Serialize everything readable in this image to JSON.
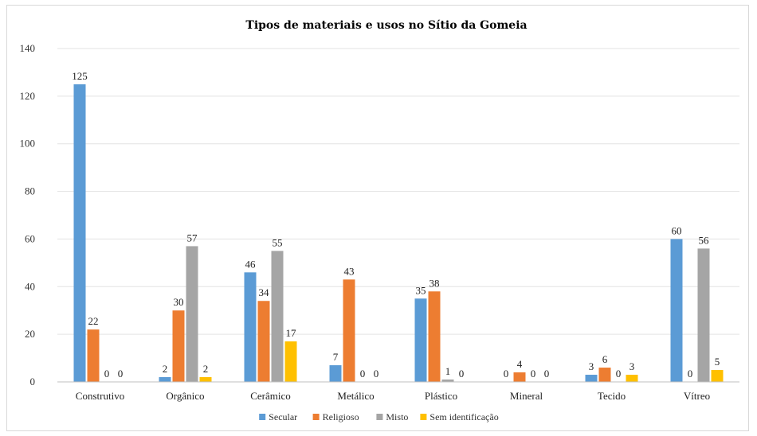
{
  "chart_data": {
    "type": "bar",
    "title": "Tipos de materiais e usos no Sítio da Gomeia",
    "categories": [
      "Construtivo",
      "Orgânico",
      "Cerâmico",
      "Metálico",
      "Plástico",
      "Mineral",
      "Tecido",
      "Vítreo"
    ],
    "series": [
      {
        "name": "Secular",
        "color": "#5b9bd5",
        "values": [
          125,
          2,
          46,
          7,
          35,
          0,
          3,
          60
        ]
      },
      {
        "name": "Religioso",
        "color": "#ed7d31",
        "values": [
          22,
          30,
          34,
          43,
          38,
          4,
          6,
          0
        ]
      },
      {
        "name": "Misto",
        "color": "#a5a5a5",
        "values": [
          0,
          57,
          55,
          0,
          1,
          0,
          0,
          56
        ]
      },
      {
        "name": "Sem identificação",
        "color": "#ffc000",
        "values": [
          0,
          2,
          17,
          0,
          0,
          0,
          3,
          5
        ]
      }
    ],
    "ylim": [
      0,
      140
    ],
    "yticks": [
      0,
      20,
      40,
      60,
      80,
      100,
      120,
      140
    ],
    "grid": true,
    "legend_position": "bottom"
  }
}
